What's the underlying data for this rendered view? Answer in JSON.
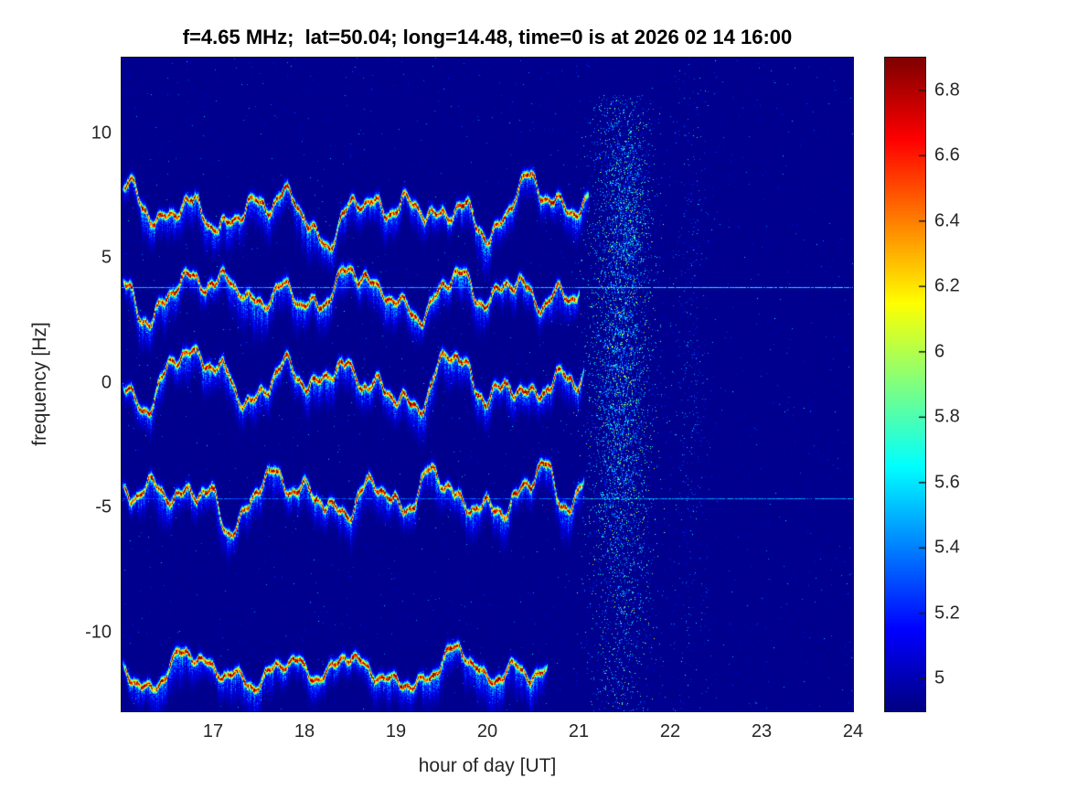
{
  "chart_data": {
    "type": "heatmap",
    "title": "f=4.65 MHz;  lat=50.04; long=14.48, time=0 is at 2026 02 14 16:00",
    "xlabel": "hour of day [UT]",
    "ylabel": "frequency [Hz]",
    "xlim": [
      16,
      24
    ],
    "ylim": [
      -13.2,
      13.0
    ],
    "x_ticks": [
      17,
      18,
      19,
      20,
      21,
      22,
      23,
      24
    ],
    "x_tick_labels": [
      "17",
      "18",
      "19",
      "20",
      "21",
      "22",
      "23",
      "24"
    ],
    "y_ticks": [
      10,
      5,
      0,
      -5,
      -10
    ],
    "y_tick_labels": [
      "10",
      "5",
      "0",
      "-5",
      "-10"
    ],
    "colorbar": {
      "min": 4.9,
      "max": 6.9,
      "colormap": "jet",
      "ticks": [
        6.8,
        6.6,
        6.4,
        6.2,
        6.0,
        5.8,
        5.6,
        5.4,
        5.2,
        5.0
      ],
      "tick_labels": [
        "6.8",
        "6.6",
        "6.4",
        "6.2",
        "6",
        "5.8",
        "5.6",
        "5.4",
        "5.2",
        "5"
      ]
    },
    "grid": false,
    "background_value": 4.93,
    "noise_speckle_prob": 0.004,
    "bands": [
      {
        "name": "doppler-trace-1",
        "center_hz": 6.85,
        "start_hour": 16.0,
        "end_hour": 21.1,
        "wiggle_amp_hz": 0.95,
        "end_hook_hz": 0.9,
        "core_value": 6.9
      },
      {
        "name": "doppler-trace-2",
        "center_hz": 3.65,
        "start_hour": 16.0,
        "end_hour": 21.0,
        "wiggle_amp_hz": 0.95,
        "end_hook_hz": 0.8,
        "core_value": 6.9
      },
      {
        "name": "doppler-trace-3",
        "center_hz": 0.05,
        "start_hour": 16.0,
        "end_hour": 21.05,
        "wiggle_amp_hz": 0.95,
        "end_hook_hz": 0.6,
        "core_value": 6.9
      },
      {
        "name": "doppler-trace-4",
        "center_hz": -4.7,
        "start_hour": 16.0,
        "end_hour": 21.05,
        "wiggle_amp_hz": 1.0,
        "end_hook_hz": 1.0,
        "core_value": 6.9
      },
      {
        "name": "doppler-trace-5",
        "center_hz": -11.55,
        "start_hour": 16.0,
        "end_hour": 20.65,
        "wiggle_amp_hz": 0.7,
        "end_hook_hz": 0.3,
        "core_value": 6.9
      }
    ],
    "spectral_lines": [
      {
        "name": "carrier-line-upper",
        "freq_hz": 3.8,
        "start_hour": 16.0,
        "end_hour": 24.0,
        "value": 5.5
      },
      {
        "name": "carrier-line-lower",
        "freq_hz": -4.65,
        "start_hour": 16.0,
        "end_hour": 24.0,
        "value": 5.32
      }
    ],
    "plumes": [
      {
        "name": "scatter-plume-main",
        "center_hour": 21.45,
        "width_hours": 0.5,
        "density": 0.55,
        "max_value": 6.4,
        "freq_min": -13.2,
        "freq_max": 11.5
      },
      {
        "name": "scatter-plume-top",
        "center_hour": 21.55,
        "width_hours": 0.28,
        "density": 0.5,
        "max_value": 6.2,
        "freq_min": 5.0,
        "freq_max": 9.8
      },
      {
        "name": "scatter-plume-faint",
        "center_hour": 22.22,
        "width_hours": 0.3,
        "density": 0.07,
        "max_value": 5.8,
        "freq_min": -13.2,
        "freq_max": 12.5
      }
    ]
  },
  "colors": {
    "background_deep_blue": "#000090",
    "trace_core_red": "#8b0000",
    "tick_label": "#262626",
    "title": "#000000"
  }
}
